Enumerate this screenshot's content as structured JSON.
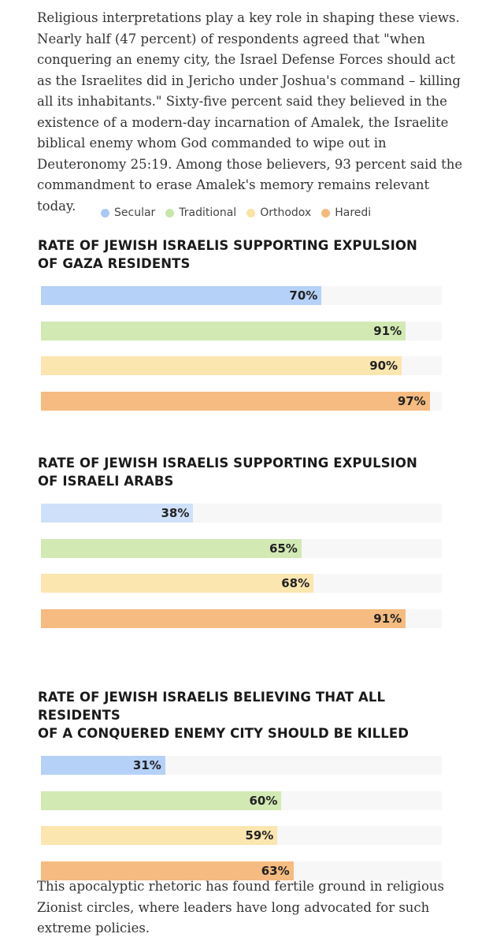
{
  "intro_text": "Religious interpretations play a key role in shaping these views. Nearly half (47 percent) of respondents agreed that \"when conquering an enemy city, the Israel Defense Forces should act as the Israelites did in Jericho under Joshua's command – killing all its inhabitants.\" Sixty-five percent said they believed in the existence of a modern-day incarnation of Amalek, the Israelite biblical enemy whom God commanded to wipe out in Deuteronomy 25:19. Among those believers, 93 percent said the commandment to erase Amalek's memory remains relevant today.",
  "outro_text": "This apocalyptic rhetoric has found fertile ground in religious Zionist circles, where leaders have long advocated for such extreme policies.",
  "legend": [
    {
      "label": "Secular",
      "color": "#a9c8f5"
    },
    {
      "label": "Traditional",
      "color": "#c8e6a8"
    },
    {
      "label": "Orthodox",
      "color": "#fbe3a5"
    },
    {
      "label": "Haredi",
      "color": "#f5b97a"
    }
  ],
  "chart_data": [
    {
      "type": "bar",
      "title": "RATE OF JEWISH ISRAELIS SUPPORTING EXPULSION\nOF GAZA RESIDENTS",
      "categories": [
        "Secular",
        "Traditional",
        "Orthodox",
        "Haredi"
      ],
      "values": [
        70,
        91,
        90,
        97
      ],
      "labels": [
        "70%",
        "91%",
        "90%",
        "97%"
      ],
      "colors": [
        "#b5d1f7",
        "#d2e9b4",
        "#fbe6b0",
        "#f5bb80"
      ],
      "xlim": [
        0,
        100
      ],
      "legend": "top"
    },
    {
      "type": "bar",
      "title": "RATE OF JEWISH ISRAELIS SUPPORTING EXPULSION\nOF ISRAELI ARABS",
      "categories": [
        "Secular",
        "Traditional",
        "Orthodox",
        "Haredi"
      ],
      "values": [
        38,
        65,
        68,
        91
      ],
      "labels": [
        "38%",
        "65%",
        "68%",
        "91%"
      ],
      "colors": [
        "#cfe0fa",
        "#d2e9b4",
        "#fbe6b0",
        "#f5bb80"
      ],
      "xlim": [
        0,
        100
      ],
      "legend": "top"
    },
    {
      "type": "bar",
      "title": "RATE OF JEWISH ISRAELIS BELIEVING THAT ALL RESIDENTS\nOF A CONQUERED ENEMY CITY SHOULD BE KILLED",
      "categories": [
        "Secular",
        "Traditional",
        "Orthodox",
        "Haredi"
      ],
      "values": [
        31,
        60,
        59,
        63
      ],
      "labels": [
        "31%",
        "60%",
        "59%",
        "63%"
      ],
      "colors": [
        "#b5d1f7",
        "#d2e9b4",
        "#fbe6b0",
        "#f5bb80"
      ],
      "xlim": [
        0,
        100
      ],
      "legend": "top"
    }
  ]
}
